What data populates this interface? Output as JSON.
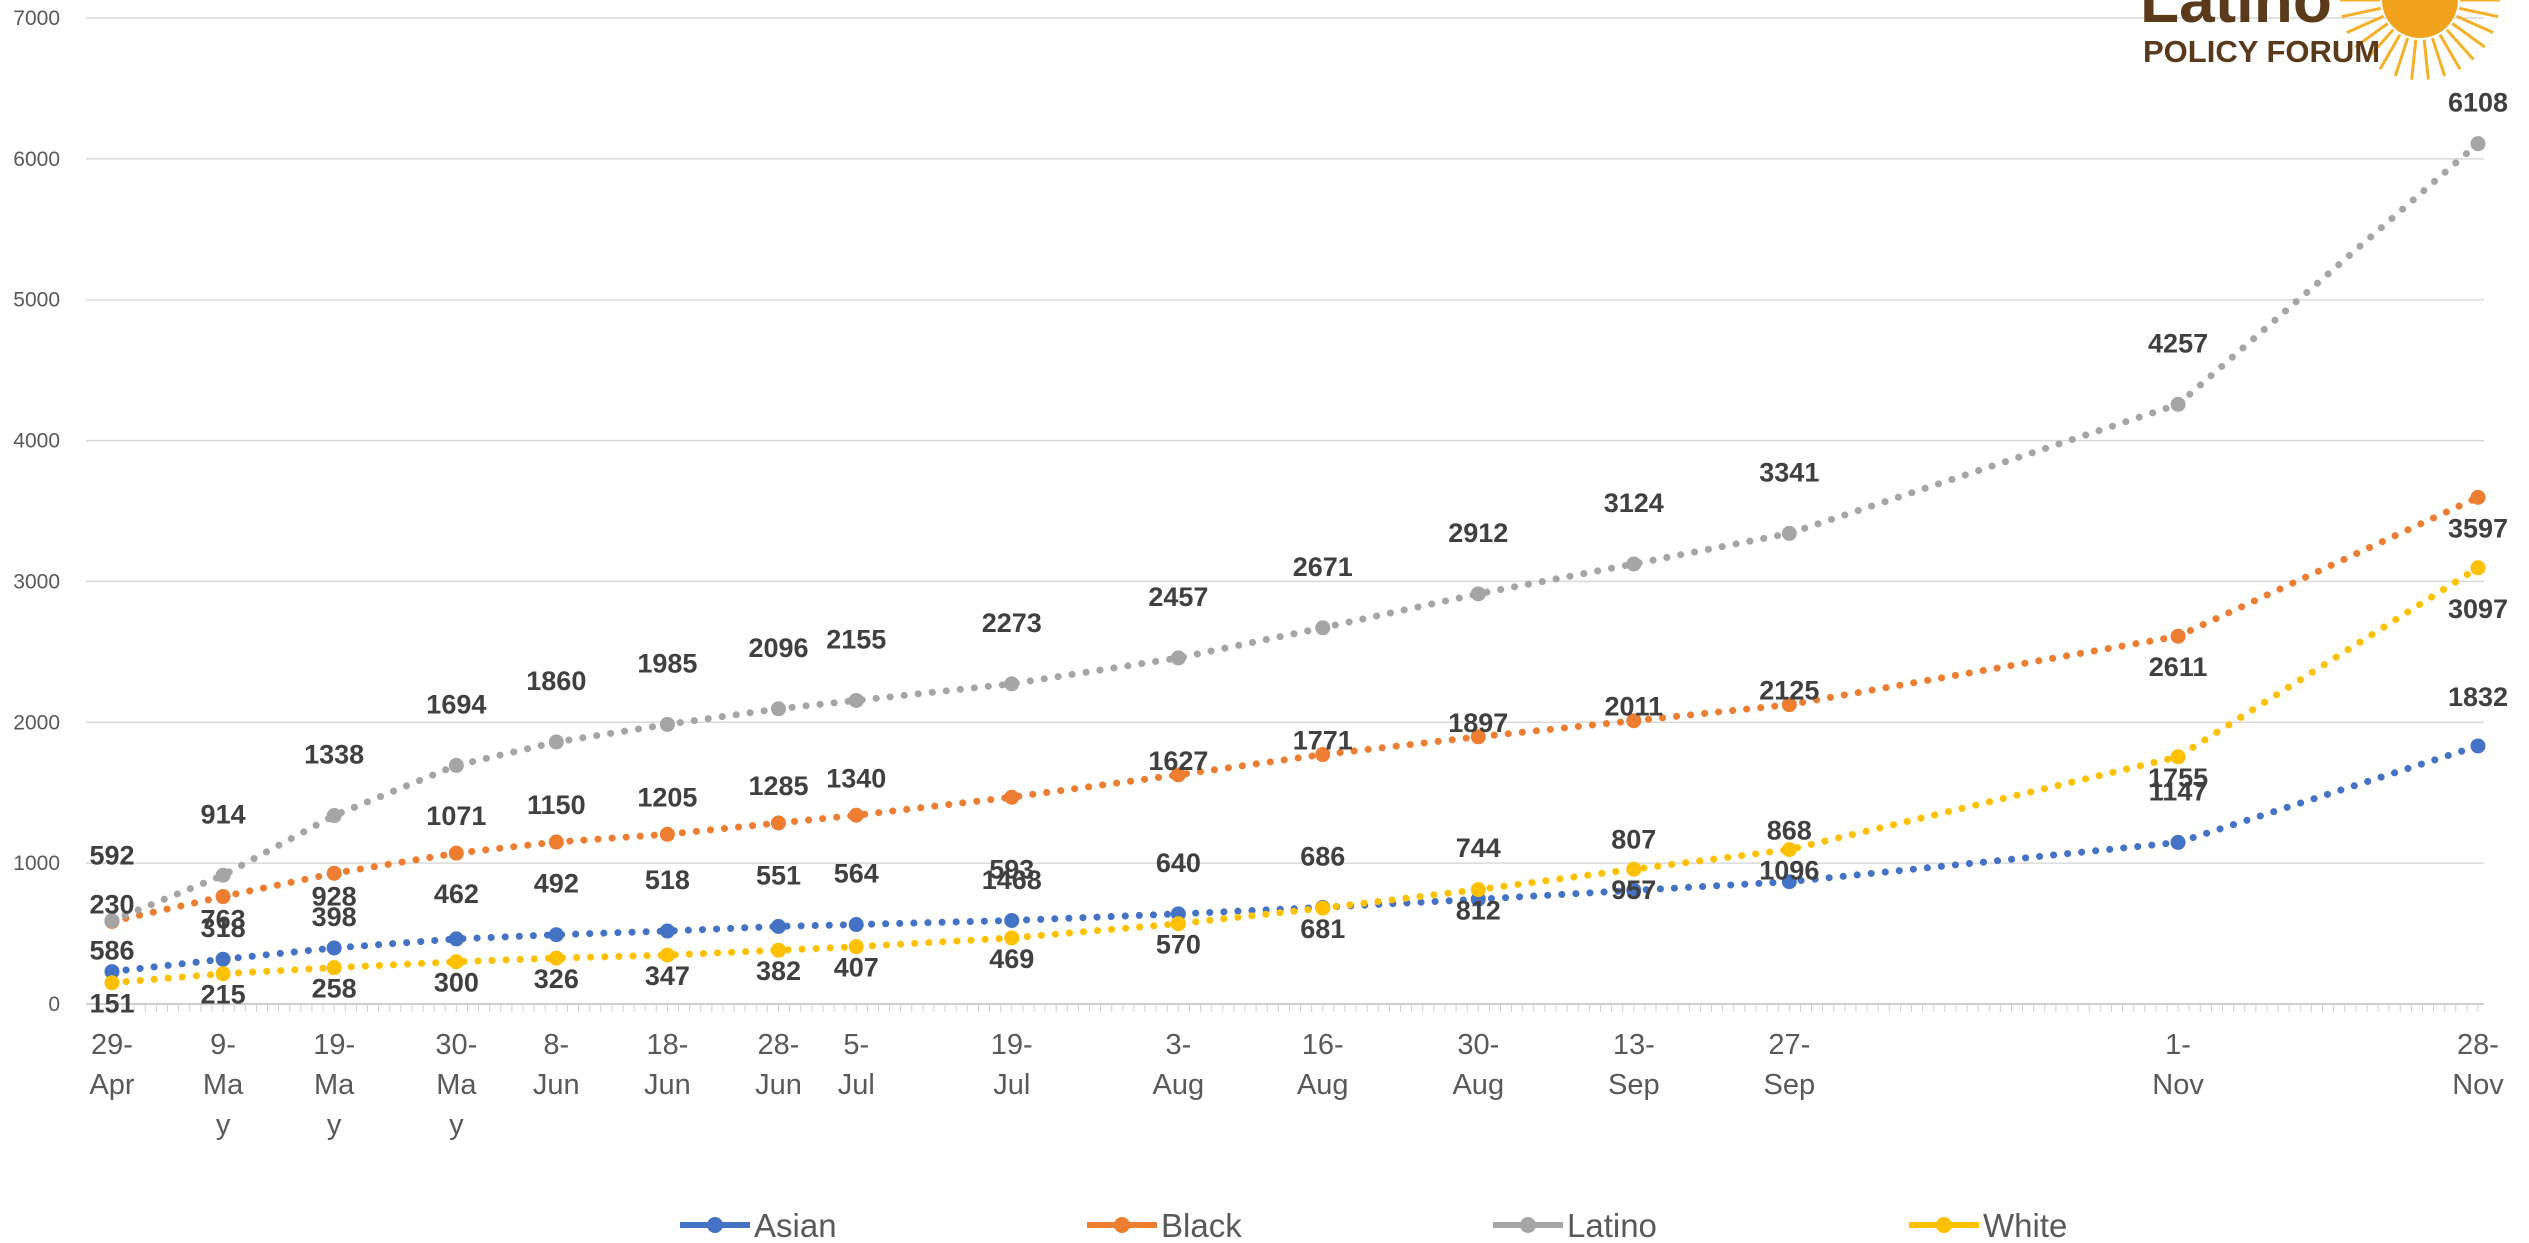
{
  "logo": {
    "name_text": "Latino",
    "sub_text": "POLICY FORUM"
  },
  "chart_data": {
    "type": "line",
    "title": "",
    "xlabel": "",
    "ylabel": "",
    "ylim": [
      0,
      7000
    ],
    "yticks": [
      0,
      1000,
      2000,
      3000,
      4000,
      5000,
      6000,
      7000
    ],
    "grid": true,
    "legend_position": "bottom",
    "line_style": "dotted",
    "categories": [
      [
        "29-",
        "Apr"
      ],
      [
        "9-",
        "Ma",
        "y"
      ],
      [
        "19-",
        "Ma",
        "y"
      ],
      [
        "30-",
        "Ma",
        "y"
      ],
      [
        "8-",
        "Jun"
      ],
      [
        "18-",
        "Jun"
      ],
      [
        "28-",
        "Jun"
      ],
      [
        "5-",
        "Jul"
      ],
      [
        "19-",
        "Jul"
      ],
      [
        "3-",
        "Aug"
      ],
      [
        "16-",
        "Aug"
      ],
      [
        "30-",
        "Aug"
      ],
      [
        "13-",
        "Sep"
      ],
      [
        "27-",
        "Sep"
      ],
      [
        "1-",
        "Nov"
      ],
      [
        "28-",
        "Nov"
      ]
    ],
    "dates": [
      "2020-04-29",
      "2020-05-09",
      "2020-05-19",
      "2020-05-30",
      "2020-06-08",
      "2020-06-18",
      "2020-06-28",
      "2020-07-05",
      "2020-07-19",
      "2020-08-03",
      "2020-08-16",
      "2020-08-30",
      "2020-09-13",
      "2020-09-27",
      "2020-11-01",
      "2020-11-28"
    ],
    "series": [
      {
        "name": "Asian",
        "color": "#4472c4",
        "values": [
          230,
          318,
          398,
          462,
          492,
          518,
          551,
          564,
          593,
          640,
          686,
          744,
          807,
          868,
          1147,
          1832
        ]
      },
      {
        "name": "Black",
        "color": "#ed7d31",
        "values": [
          586,
          763,
          928,
          1071,
          1150,
          1205,
          1285,
          1340,
          1468,
          1627,
          1771,
          1897,
          2011,
          2125,
          2611,
          3597
        ]
      },
      {
        "name": "Latino",
        "color": "#a5a5a5",
        "values": [
          592,
          914,
          1338,
          1694,
          1860,
          1985,
          2096,
          2155,
          2273,
          2457,
          2671,
          2912,
          3124,
          3341,
          4257,
          6108
        ]
      },
      {
        "name": "White",
        "color": "#ffc000",
        "values": [
          151,
          215,
          258,
          300,
          326,
          347,
          382,
          407,
          469,
          570,
          681,
          812,
          957,
          1096,
          1755,
          3097
        ]
      }
    ]
  }
}
